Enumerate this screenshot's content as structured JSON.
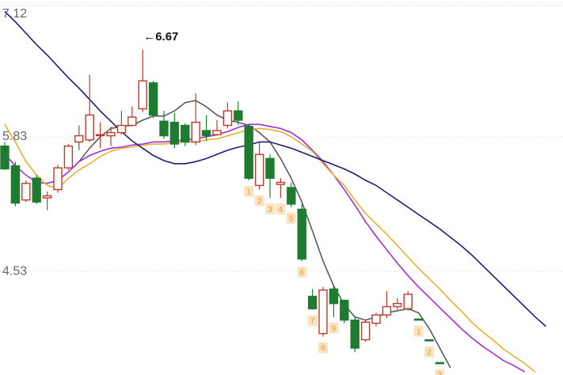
{
  "chart_data": {
    "type": "candlestick",
    "annotation": "←6.67",
    "annotation_at": 13,
    "up_color": "#c0392b",
    "down_color": "#1e7b30",
    "tag_color": "#fbe3c0",
    "ylim": [
      3.53,
      7.12
    ],
    "yticks": [
      4.53,
      5.83,
      7.12
    ],
    "grid": true,
    "categories": [
      null,
      null,
      null,
      null,
      null,
      null,
      null,
      null,
      null,
      null,
      null,
      null,
      null,
      null,
      null,
      null,
      null,
      null,
      null,
      null,
      null,
      null,
      null,
      null,
      null,
      null,
      null,
      null,
      null,
      null,
      null,
      null,
      null,
      null,
      null,
      null,
      null,
      null,
      null,
      null,
      null,
      null,
      null,
      null,
      null,
      null,
      null,
      null,
      null,
      null,
      null,
      null,
      null
    ],
    "open": [
      5.74,
      5.55,
      5.22,
      5.43,
      5.24,
      5.32,
      5.53,
      5.78,
      5.8,
      5.85,
      5.84,
      5.87,
      5.94,
      6.1,
      6.35,
      5.98,
      5.97,
      5.94,
      5.78,
      5.89,
      5.85,
      5.94,
      6.08,
      5.93,
      5.36,
      5.62,
      5.37,
      5.34,
      5.13,
      4.29,
      3.93,
      4.36,
      4.25,
      4.06,
      3.87,
      4.03,
      4.11,
      4.19,
      4.17,
      4.07,
      3.87,
      3.65,
      null,
      null,
      null,
      null,
      null,
      null,
      null,
      null,
      null,
      null,
      null
    ],
    "high": [
      5.78,
      5.59,
      5.41,
      5.46,
      5.3,
      5.56,
      5.76,
      5.94,
      6.43,
      5.97,
      5.93,
      6.08,
      6.12,
      6.67,
      6.37,
      6.08,
      6.06,
      5.96,
      6.25,
      6.04,
      5.99,
      6.16,
      6.17,
      5.94,
      5.78,
      5.66,
      5.43,
      5.39,
      5.18,
      4.36,
      4.38,
      4.39,
      4.26,
      4.1,
      4.06,
      4.13,
      4.34,
      4.27,
      4.34,
      4.07,
      3.87,
      3.65,
      null,
      null,
      null,
      null,
      null,
      null,
      null,
      null,
      null,
      null,
      null
    ],
    "low": [
      5.51,
      5.16,
      5.2,
      5.18,
      5.12,
      5.29,
      5.51,
      5.7,
      5.78,
      5.72,
      5.74,
      5.85,
      5.93,
      6.07,
      6.01,
      5.81,
      5.72,
      5.74,
      5.75,
      5.79,
      5.84,
      5.91,
      5.94,
      5.41,
      5.32,
      5.24,
      5.24,
      5.15,
      4.63,
      4.16,
      3.9,
      4.09,
      4.03,
      3.75,
      3.85,
      4.0,
      4.08,
      4.16,
      4.15,
      4.06,
      3.86,
      3.64,
      null,
      null,
      null,
      null,
      null,
      null,
      null,
      null,
      null,
      null,
      null
    ],
    "close": [
      5.52,
      5.19,
      5.38,
      5.2,
      5.26,
      5.53,
      5.74,
      5.84,
      6.04,
      5.85,
      5.87,
      5.94,
      6.02,
      6.37,
      6.04,
      5.84,
      5.76,
      5.78,
      5.97,
      5.84,
      5.89,
      6.08,
      5.99,
      5.43,
      5.66,
      5.43,
      5.39,
      5.18,
      4.65,
      4.17,
      4.35,
      4.22,
      4.06,
      3.79,
      4.04,
      4.11,
      4.19,
      4.22,
      4.31,
      4.06,
      3.86,
      3.64,
      null,
      null,
      null,
      null,
      null,
      null,
      null,
      null,
      null,
      null,
      null
    ],
    "tags": [
      null,
      null,
      null,
      null,
      null,
      null,
      null,
      null,
      null,
      null,
      null,
      null,
      null,
      null,
      null,
      null,
      null,
      null,
      null,
      null,
      null,
      null,
      null,
      "1",
      "2",
      "3",
      "4",
      "5",
      "6",
      "7",
      "8",
      "9",
      null,
      null,
      null,
      null,
      null,
      null,
      null,
      "1",
      "2",
      "3",
      null,
      null,
      null,
      null,
      null,
      null,
      null,
      null,
      null,
      null,
      null
    ],
    "lines": [
      {
        "color": "#5a5a5a",
        "values": [
          null,
          null,
          null,
          null,
          null,
          null,
          null,
          5.59,
          5.72,
          5.83,
          5.91,
          5.93,
          5.94,
          5.99,
          6.03,
          6.03,
          6.08,
          6.16,
          6.18,
          6.12,
          6.04,
          5.99,
          5.97,
          5.94,
          5.87,
          5.78,
          5.62,
          5.43,
          5.2,
          4.92,
          4.63,
          4.39,
          4.21,
          4.09,
          4.06,
          4.09,
          4.13,
          4.15,
          4.17,
          4.13,
          3.98,
          3.79,
          3.6,
          null,
          null,
          null,
          null,
          null,
          null,
          null,
          null,
          null,
          null
        ]
      },
      {
        "color": "#9b30d9",
        "values": [
          5.66,
          5.55,
          5.46,
          5.39,
          5.38,
          5.41,
          5.49,
          5.59,
          5.65,
          5.69,
          5.72,
          5.73,
          5.75,
          5.76,
          5.78,
          5.78,
          5.79,
          5.8,
          5.81,
          5.83,
          5.85,
          5.88,
          5.92,
          5.95,
          5.95,
          5.93,
          5.91,
          5.87,
          5.8,
          5.7,
          5.59,
          5.46,
          5.32,
          5.17,
          5.01,
          4.87,
          4.74,
          4.61,
          4.49,
          4.38,
          4.28,
          4.18,
          4.08,
          3.98,
          3.89,
          3.81,
          3.74,
          3.67,
          3.62,
          3.56,
          null,
          null,
          null
        ]
      },
      {
        "color": "#e8b030",
        "values": [
          5.95,
          5.78,
          5.59,
          5.46,
          5.36,
          5.33,
          5.43,
          5.51,
          5.57,
          5.64,
          5.69,
          5.72,
          5.73,
          5.75,
          5.76,
          5.76,
          5.77,
          5.78,
          5.78,
          5.8,
          5.81,
          5.84,
          5.87,
          5.9,
          5.91,
          5.9,
          5.88,
          5.83,
          5.76,
          5.69,
          5.57,
          5.46,
          5.36,
          5.22,
          5.09,
          4.99,
          4.89,
          4.78,
          4.67,
          4.56,
          4.46,
          4.36,
          4.25,
          4.15,
          4.04,
          3.95,
          3.87,
          3.78,
          3.71,
          3.64,
          3.56,
          null,
          null
        ]
      },
      {
        "color": "#1c1c7a",
        "values": [
          7.04,
          6.94,
          6.83,
          6.72,
          6.62,
          6.51,
          6.4,
          6.3,
          6.19,
          6.08,
          5.98,
          5.88,
          5.79,
          5.72,
          5.65,
          5.6,
          5.57,
          5.57,
          5.59,
          5.62,
          5.66,
          5.7,
          5.73,
          5.75,
          5.78,
          5.78,
          5.75,
          5.72,
          5.68,
          5.64,
          5.6,
          5.56,
          5.52,
          5.47,
          5.41,
          5.36,
          5.29,
          5.22,
          5.15,
          5.08,
          5.01,
          4.94,
          4.86,
          4.78,
          4.69,
          4.59,
          4.49,
          4.39,
          4.29,
          4.19,
          4.09,
          4.0,
          null
        ]
      }
    ]
  }
}
